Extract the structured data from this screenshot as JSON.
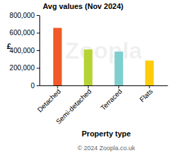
{
  "chart_data": {
    "type": "bar",
    "title": "Avg values (Nov 2024)",
    "x_label": "Property type",
    "y_label": "£",
    "categories": [
      "Detached",
      "Semi-detached",
      "Terraced",
      "Flats"
    ],
    "values": [
      655000,
      410000,
      385000,
      283000
    ],
    "colors": [
      "#f05a28",
      "#b5d334",
      "#7ecece",
      "#fdcc0d"
    ],
    "ylim": [
      0,
      800000
    ],
    "yticks": [
      0,
      {
        "value": 200000,
        "label": "200,000"
      },
      {
        "value": 400000,
        "label": "400,000"
      },
      {
        "value": 600000,
        "label": "600,000"
      },
      {
        "value": 800000,
        "label": "800,000"
      }
    ],
    "grid": false,
    "annotations": [
      "Zoopla",
      "© 2024 Zoopla.co.uk"
    ]
  }
}
